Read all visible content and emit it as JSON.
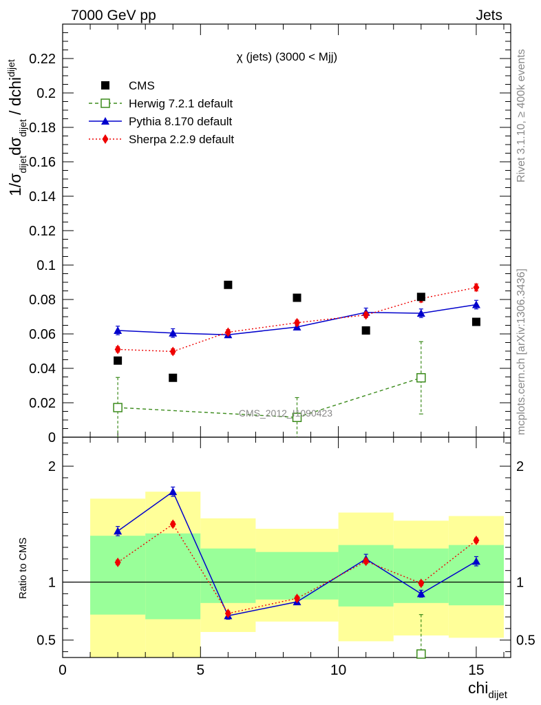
{
  "header": {
    "left": "7000 GeV pp",
    "right": "Jets"
  },
  "side_text": {
    "rivet": "Rivet 3.1.10, ≥ 400k events",
    "mcplots": "mcplots.cern.ch [arXiv:1306.3436]"
  },
  "watermark": "CMS_2012_I1090423",
  "colors": {
    "herwig": "#3a8a1a",
    "pythia": "#0000cc",
    "sherpa": "#ee0000",
    "band_green": "#99ff99",
    "band_yellow": "#ffff99"
  },
  "chart_data": [
    {
      "type": "scatter",
      "title": "χ (jets) (3000 < Mjj)",
      "xlabel": "chi",
      "xlabel_sub": "dijet",
      "ylabel": "1/σ dσ / dchi",
      "ylabel_parts": [
        "1/σ",
        "dijet",
        "dσ",
        "dijet",
        " / dchi",
        "dijet"
      ],
      "xlim": [
        0,
        16.25
      ],
      "ylim": [
        0,
        0.24
      ],
      "yticks": [
        0,
        0.02,
        0.04,
        0.06,
        0.08,
        0.1,
        0.12,
        0.14,
        0.16,
        0.18,
        0.2,
        0.22
      ],
      "ytick_labels": [
        "0",
        "0.02",
        "0.04",
        "0.06",
        "0.08",
        "0.1",
        "0.12",
        "0.14",
        "0.16",
        "0.18",
        "0.2",
        "0.22"
      ],
      "legend_position": "top-left",
      "series": [
        {
          "name": "CMS",
          "key": "cms",
          "style": "marker",
          "x": [
            2,
            4,
            6,
            8.5,
            11,
            13,
            15
          ],
          "y": [
            0.0445,
            0.0345,
            0.0885,
            0.081,
            0.062,
            0.0815,
            0.067
          ]
        },
        {
          "name": "Herwig 7.2.1 default",
          "key": "herwig",
          "style": "dashed",
          "x": [
            2,
            8.5,
            13
          ],
          "y": [
            0.0172,
            0.0115,
            0.0345
          ],
          "err": [
            0.0175,
            0.0115,
            0.021
          ]
        },
        {
          "name": "Pythia 8.170 default",
          "key": "pythia",
          "style": "solid",
          "x": [
            2,
            4,
            6,
            8.5,
            11,
            13,
            15
          ],
          "y": [
            0.062,
            0.0605,
            0.0595,
            0.064,
            0.0725,
            0.072,
            0.077
          ],
          "err": [
            0.0025,
            0.0025,
            0.0015,
            0.0015,
            0.0025,
            0.0025,
            0.0025
          ]
        },
        {
          "name": "Sherpa 2.2.9 default",
          "key": "sherpa",
          "style": "dotted",
          "x": [
            2,
            4,
            6,
            8.5,
            11,
            13,
            15
          ],
          "y": [
            0.051,
            0.0498,
            0.061,
            0.0665,
            0.071,
            0.0805,
            0.087
          ],
          "err": [
            0.0015,
            0.0015,
            0.0015,
            0.0015,
            0.0015,
            0.002,
            0.002
          ]
        }
      ]
    },
    {
      "type": "line",
      "ylabel": "Ratio to CMS",
      "xlim": [
        0,
        16.25
      ],
      "ylim": [
        0.35,
        2.25
      ],
      "xticks": [
        0,
        5,
        10,
        15
      ],
      "xtick_labels": [
        "0",
        "5",
        "10",
        "15"
      ],
      "yticks": [
        0.5,
        1,
        2
      ],
      "ytick_labels": [
        "0.5",
        "1",
        "2"
      ],
      "bands": [
        {
          "x0": 1,
          "x1": 3,
          "green": [
            0.72,
            1.4
          ],
          "yellow": [
            0.35,
            1.72
          ]
        },
        {
          "x0": 3,
          "x1": 5,
          "green": [
            0.68,
            1.42
          ],
          "yellow": [
            0.35,
            1.78
          ]
        },
        {
          "x0": 5,
          "x1": 7,
          "green": [
            0.82,
            1.29
          ],
          "yellow": [
            0.57,
            1.55
          ]
        },
        {
          "x0": 7,
          "x1": 10,
          "green": [
            0.85,
            1.26
          ],
          "yellow": [
            0.66,
            1.46
          ]
        },
        {
          "x0": 10,
          "x1": 12,
          "green": [
            0.79,
            1.32
          ],
          "yellow": [
            0.49,
            1.6
          ]
        },
        {
          "x0": 12,
          "x1": 14,
          "green": [
            0.82,
            1.29
          ],
          "yellow": [
            0.54,
            1.53
          ]
        },
        {
          "x0": 14,
          "x1": 16,
          "green": [
            0.8,
            1.32
          ],
          "yellow": [
            0.52,
            1.57
          ]
        }
      ],
      "series": [
        {
          "name": "Herwig 7.2.1 default",
          "key": "herwig",
          "style": "dashed",
          "x": [
            13
          ],
          "y": [
            0.38
          ],
          "err": [
            0.34
          ]
        },
        {
          "name": "Pythia 8.170 default",
          "key": "pythia",
          "style": "solid",
          "x": [
            2,
            4,
            6,
            8.5,
            11,
            13,
            15
          ],
          "y": [
            1.44,
            1.78,
            0.71,
            0.83,
            1.2,
            0.9,
            1.18
          ],
          "err": [
            0.04,
            0.04,
            0.03,
            0.02,
            0.04,
            0.03,
            0.04
          ]
        },
        {
          "name": "Sherpa 2.2.9 default",
          "key": "sherpa",
          "style": "dotted",
          "x": [
            2,
            4,
            6,
            8.5,
            11,
            13,
            15
          ],
          "y": [
            1.17,
            1.5,
            0.73,
            0.86,
            1.18,
            0.99,
            1.36
          ],
          "err": [
            0.02,
            0.02,
            0.02,
            0.02,
            0.02,
            0.02,
            0.02
          ]
        }
      ]
    }
  ]
}
